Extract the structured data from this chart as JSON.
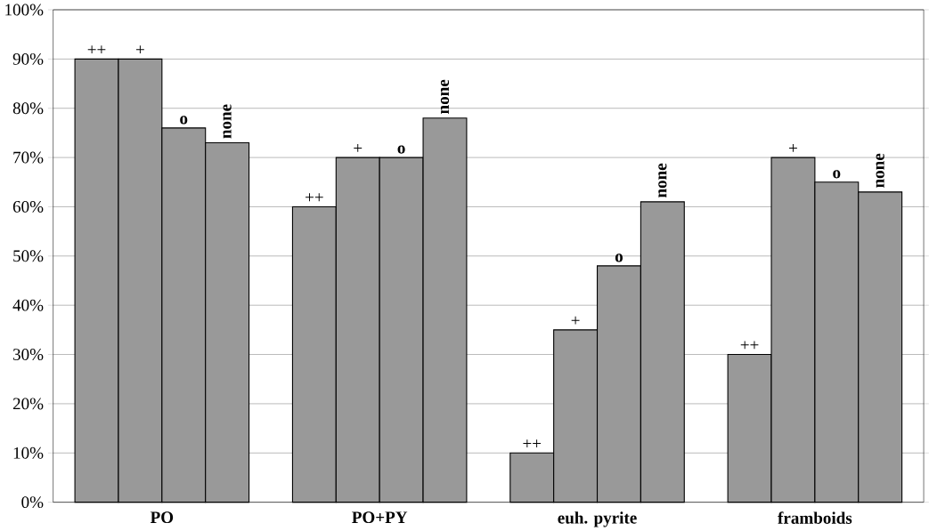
{
  "chart_data": {
    "type": "bar",
    "categories": [
      "PO",
      "PO+PY",
      "euh. pyrite",
      "framboids"
    ],
    "series": [
      {
        "name": "++",
        "color": "#999999",
        "values": [
          90,
          60,
          10,
          30
        ]
      },
      {
        "name": "+",
        "color": "#999999",
        "values": [
          90,
          70,
          35,
          70
        ]
      },
      {
        "name": "o",
        "color": "#999999",
        "values": [
          76,
          70,
          48,
          65
        ]
      },
      {
        "name": "none",
        "color": "#999999",
        "values": [
          73,
          78,
          61,
          63
        ]
      }
    ],
    "ylim": [
      0,
      100
    ],
    "yticks": [
      {
        "value": 0,
        "label": "0%"
      },
      {
        "value": 10,
        "label": "10%"
      },
      {
        "value": 20,
        "label": "20%"
      },
      {
        "value": 30,
        "label": "30%"
      },
      {
        "value": 40,
        "label": "40%"
      },
      {
        "value": 50,
        "label": "50%"
      },
      {
        "value": 60,
        "label": "60%"
      },
      {
        "value": 70,
        "label": "70%"
      },
      {
        "value": 80,
        "label": "80%"
      },
      {
        "value": 90,
        "label": "90%"
      },
      {
        "value": 100,
        "label": "100%"
      }
    ],
    "grid": "y"
  }
}
